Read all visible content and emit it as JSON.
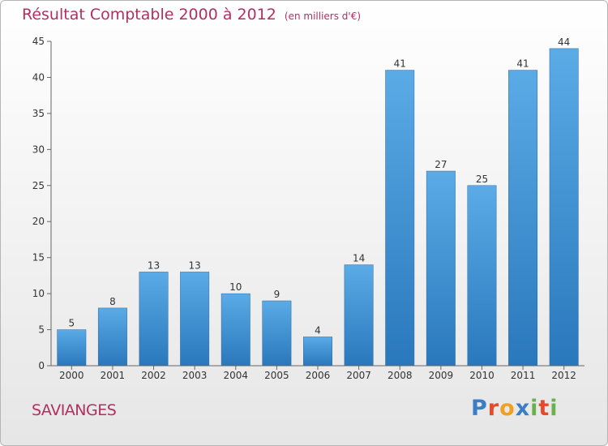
{
  "header": {
    "title": "Résultat Comptable 2000 à 2012",
    "subtitle": "(en milliers d'€)"
  },
  "commune": "SAVIANGES",
  "logo": {
    "letters": [
      {
        "ch": "P",
        "color": "#3a7fc6"
      },
      {
        "ch": "r",
        "color": "#e24b2b"
      },
      {
        "ch": "o",
        "color": "#f0a020"
      },
      {
        "ch": "x",
        "color": "#3a7fc6"
      },
      {
        "ch": "i",
        "color": "#6ab04c"
      },
      {
        "ch": "t",
        "color": "#e24b2b"
      },
      {
        "ch": "i",
        "color": "#6ab04c"
      }
    ]
  },
  "colors": {
    "title": "#b03060",
    "bar_top": "#5aabe6",
    "bar_bottom": "#2a78bc"
  },
  "chart_data": {
    "type": "bar",
    "title": "Résultat Comptable 2000 à 2012",
    "subtitle": "(en milliers d'€)",
    "categories": [
      "2000",
      "2001",
      "2002",
      "2003",
      "2004",
      "2005",
      "2006",
      "2007",
      "2008",
      "2009",
      "2010",
      "2011",
      "2012"
    ],
    "values": [
      5,
      8,
      13,
      13,
      10,
      9,
      4,
      14,
      41,
      27,
      25,
      41,
      44
    ],
    "ylim": [
      0,
      45
    ],
    "yticks": [
      0,
      5,
      10,
      15,
      20,
      25,
      30,
      35,
      40,
      45
    ],
    "grid": false
  }
}
